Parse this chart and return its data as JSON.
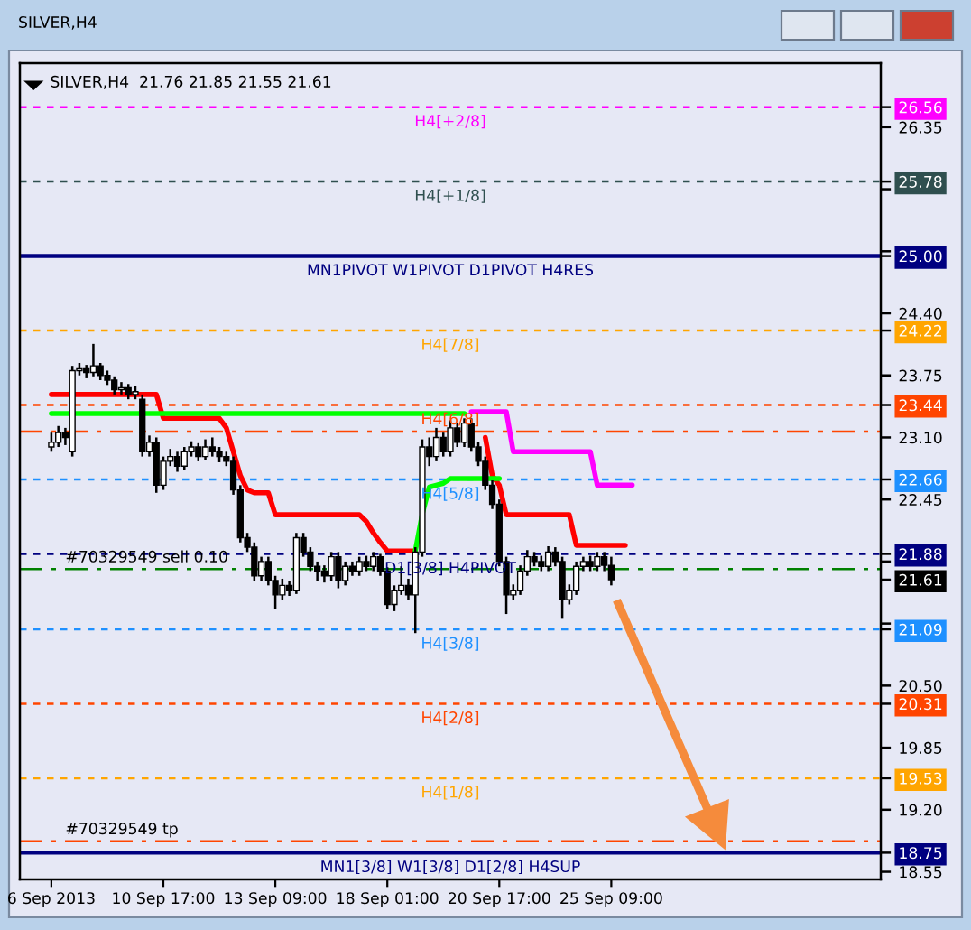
{
  "chart_data": {
    "type": "candlestick",
    "title": "SILVER,H4",
    "subtitle": "SILVER,H4  21.76 21.85 21.55 21.61",
    "categories": [
      "6 Sep 2013",
      null,
      null,
      null,
      null,
      null,
      null,
      null,
      null,
      null,
      null,
      null,
      null,
      null,
      null,
      null,
      "10 Sep 17:00",
      null,
      null,
      null,
      null,
      null,
      null,
      null,
      null,
      null,
      null,
      null,
      null,
      null,
      null,
      null,
      "13 Sep 09:00",
      null,
      null,
      null,
      null,
      null,
      null,
      null,
      null,
      null,
      null,
      null,
      null,
      null,
      null,
      null,
      "18 Sep 01:00",
      null,
      null,
      null,
      null,
      null,
      null,
      null,
      null,
      null,
      null,
      null,
      null,
      null,
      null,
      null,
      "20 Sep 17:00",
      null,
      null,
      null,
      null,
      null,
      null,
      null,
      null,
      null,
      null,
      null,
      null,
      null,
      null,
      null,
      "25 Sep 09:00",
      null,
      null,
      null,
      null,
      null,
      null,
      null,
      null,
      null,
      null,
      null,
      null,
      null,
      null,
      null,
      null,
      null,
      null,
      null,
      null,
      null,
      null,
      null,
      null,
      null,
      null,
      null,
      null,
      null,
      null,
      null,
      null,
      null,
      null,
      null,
      null,
      null,
      null
    ],
    "ohlc": [
      [
        23.0,
        23.15,
        22.95,
        23.05
      ],
      [
        23.05,
        23.22,
        23.0,
        23.15
      ],
      [
        23.15,
        23.2,
        23.02,
        23.1
      ],
      [
        22.95,
        23.85,
        22.9,
        23.8
      ],
      [
        23.8,
        23.88,
        23.75,
        23.82
      ],
      [
        23.82,
        23.86,
        23.72,
        23.78
      ],
      [
        23.78,
        24.08,
        23.74,
        23.85
      ],
      [
        23.85,
        23.88,
        23.7,
        23.75
      ],
      [
        23.75,
        23.8,
        23.65,
        23.7
      ],
      [
        23.7,
        23.74,
        23.55,
        23.6
      ],
      [
        23.6,
        23.68,
        23.55,
        23.62
      ],
      [
        23.62,
        23.66,
        23.5,
        23.55
      ],
      [
        23.55,
        23.64,
        23.5,
        23.58
      ],
      [
        23.5,
        23.55,
        22.9,
        22.95
      ],
      [
        22.95,
        23.12,
        22.9,
        23.05
      ],
      [
        23.05,
        23.1,
        22.52,
        22.6
      ],
      [
        22.6,
        22.9,
        22.55,
        22.85
      ],
      [
        22.85,
        22.98,
        22.8,
        22.9
      ],
      [
        22.9,
        22.95,
        22.74,
        22.8
      ],
      [
        22.8,
        23.0,
        22.76,
        22.95
      ],
      [
        22.95,
        23.06,
        22.9,
        23.0
      ],
      [
        23.0,
        23.04,
        22.85,
        22.9
      ],
      [
        22.9,
        23.08,
        22.86,
        23.0
      ],
      [
        23.0,
        23.1,
        22.9,
        22.95
      ],
      [
        22.95,
        23.0,
        22.84,
        22.9
      ],
      [
        22.9,
        22.95,
        22.8,
        22.85
      ],
      [
        22.85,
        22.9,
        22.5,
        22.55
      ],
      [
        22.55,
        22.6,
        22.0,
        22.05
      ],
      [
        22.05,
        22.1,
        21.9,
        21.95
      ],
      [
        21.95,
        22.0,
        21.6,
        21.65
      ],
      [
        21.65,
        21.85,
        21.6,
        21.8
      ],
      [
        21.8,
        21.85,
        21.55,
        21.6
      ],
      [
        21.6,
        21.65,
        21.3,
        21.45
      ],
      [
        21.45,
        21.62,
        21.4,
        21.55
      ],
      [
        21.55,
        21.6,
        21.44,
        21.5
      ],
      [
        21.5,
        22.1,
        21.46,
        22.05
      ],
      [
        22.05,
        22.1,
        21.85,
        21.9
      ],
      [
        21.9,
        21.95,
        21.7,
        21.75
      ],
      [
        21.75,
        21.8,
        21.6,
        21.7
      ],
      [
        21.7,
        21.76,
        21.58,
        21.65
      ],
      [
        21.65,
        21.9,
        21.6,
        21.85
      ],
      [
        21.85,
        21.9,
        21.52,
        21.6
      ],
      [
        21.6,
        21.8,
        21.55,
        21.75
      ],
      [
        21.75,
        21.8,
        21.65,
        21.7
      ],
      [
        21.7,
        21.85,
        21.65,
        21.8
      ],
      [
        21.8,
        21.86,
        21.7,
        21.75
      ],
      [
        21.75,
        21.9,
        21.7,
        21.85
      ],
      [
        21.85,
        21.88,
        21.65,
        21.7
      ],
      [
        21.7,
        21.74,
        21.3,
        21.35
      ],
      [
        21.35,
        21.55,
        21.28,
        21.5
      ],
      [
        21.5,
        21.75,
        21.45,
        21.55
      ],
      [
        21.55,
        21.62,
        21.4,
        21.45
      ],
      [
        21.45,
        21.95,
        21.05,
        21.9
      ],
      [
        21.9,
        23.08,
        21.85,
        23.0
      ],
      [
        23.0,
        23.1,
        22.8,
        22.9
      ],
      [
        22.9,
        23.2,
        22.85,
        23.1
      ],
      [
        23.1,
        23.15,
        22.9,
        22.95
      ],
      [
        22.95,
        23.28,
        22.9,
        23.2
      ],
      [
        23.2,
        23.25,
        23.0,
        23.05
      ],
      [
        23.05,
        23.3,
        23.0,
        23.25
      ],
      [
        23.25,
        23.3,
        22.95,
        23.0
      ],
      [
        23.0,
        23.05,
        22.8,
        22.85
      ],
      [
        22.85,
        22.9,
        22.55,
        22.6
      ],
      [
        22.6,
        22.65,
        22.35,
        22.4
      ],
      [
        22.4,
        22.45,
        21.75,
        21.8
      ],
      [
        21.8,
        21.85,
        21.25,
        21.45
      ],
      [
        21.45,
        21.56,
        21.4,
        21.5
      ],
      [
        21.5,
        21.76,
        21.45,
        21.7
      ],
      [
        21.7,
        21.92,
        21.65,
        21.85
      ],
      [
        21.85,
        21.9,
        21.75,
        21.8
      ],
      [
        21.8,
        21.86,
        21.7,
        21.75
      ],
      [
        21.75,
        21.96,
        21.7,
        21.9
      ],
      [
        21.9,
        21.95,
        21.75,
        21.8
      ],
      [
        21.8,
        21.85,
        21.2,
        21.4
      ],
      [
        21.4,
        21.56,
        21.35,
        21.5
      ],
      [
        21.5,
        21.8,
        21.45,
        21.75
      ],
      [
        21.75,
        21.85,
        21.7,
        21.8
      ],
      [
        21.8,
        21.86,
        21.7,
        21.75
      ],
      [
        21.75,
        21.9,
        21.7,
        21.85
      ],
      [
        21.85,
        21.9,
        21.7,
        21.76
      ],
      [
        21.76,
        21.85,
        21.55,
        21.61
      ],
      null,
      null,
      null,
      null,
      null,
      null,
      null,
      null,
      null,
      null,
      null,
      null,
      null,
      null,
      null,
      null,
      null,
      null,
      null,
      null,
      null,
      null,
      null,
      null,
      null,
      null,
      null,
      null,
      null,
      null,
      null,
      null,
      null,
      null,
      null,
      null,
      null,
      null
    ],
    "series": [
      {
        "type": "line",
        "color": "#ff0000",
        "values": [
          23.55,
          23.55,
          23.55,
          23.55,
          23.55,
          23.55,
          23.55,
          23.55,
          23.55,
          23.55,
          23.55,
          23.55,
          23.55,
          23.55,
          23.55,
          23.55,
          23.3,
          23.3,
          23.3,
          23.3,
          23.3,
          23.3,
          23.3,
          23.3,
          23.3,
          23.2,
          22.95,
          22.7,
          22.55,
          22.52,
          22.52,
          22.52,
          22.29,
          22.29,
          22.29,
          22.29,
          22.29,
          22.29,
          22.29,
          22.29,
          22.29,
          22.29,
          22.29,
          22.29,
          22.29,
          22.22,
          22.1,
          22.0,
          21.91,
          21.91,
          21.91,
          21.91,
          21.91,
          null,
          null,
          null,
          null,
          null,
          null,
          null,
          null,
          null,
          23.1,
          22.7,
          22.6,
          22.29,
          22.29,
          22.29,
          22.29,
          22.29,
          22.29,
          22.29,
          22.29,
          22.29,
          22.29,
          21.97,
          21.97,
          21.97,
          21.97,
          21.97,
          21.97,
          21.97,
          21.97,
          null,
          null,
          null,
          null,
          null,
          null,
          null,
          null,
          null,
          null,
          null,
          null,
          null,
          null,
          null,
          null,
          null,
          null,
          null,
          null,
          null,
          null,
          null,
          null,
          null,
          null,
          null,
          null,
          null,
          null,
          null,
          null,
          null,
          null,
          null,
          null
        ]
      },
      {
        "type": "line",
        "color": "#00ff00",
        "values": [
          23.35,
          23.35,
          23.35,
          23.35,
          23.35,
          23.35,
          23.35,
          23.35,
          23.35,
          23.35,
          23.35,
          23.35,
          23.35,
          23.35,
          23.35,
          23.35,
          23.35,
          23.35,
          23.35,
          23.35,
          23.35,
          23.35,
          23.35,
          23.35,
          23.35,
          23.35,
          23.35,
          23.35,
          23.35,
          23.35,
          23.35,
          23.35,
          23.35,
          23.35,
          23.35,
          23.35,
          23.35,
          23.35,
          23.35,
          23.35,
          23.35,
          23.35,
          23.35,
          23.35,
          23.35,
          23.35,
          23.35,
          23.35,
          23.35,
          23.35,
          23.35,
          23.35,
          23.35,
          23.35,
          23.35,
          23.35,
          23.35,
          23.35,
          23.35,
          23.35,
          null,
          null,
          null,
          null,
          null,
          null,
          null,
          null,
          null,
          null,
          null,
          null,
          null,
          null,
          null,
          null,
          null,
          null,
          null,
          null,
          null,
          null,
          null,
          null,
          null,
          null,
          null,
          null,
          null,
          null,
          null,
          null,
          null,
          null,
          null,
          null,
          null,
          null,
          null,
          null,
          null,
          null,
          null,
          null,
          null,
          null,
          null,
          null,
          null,
          null,
          null,
          null,
          null,
          null,
          null,
          null,
          null,
          null,
          null
        ]
      },
      {
        "type": "line",
        "color": "#ff00ff",
        "values": [
          null,
          null,
          null,
          null,
          null,
          null,
          null,
          null,
          null,
          null,
          null,
          null,
          null,
          null,
          null,
          null,
          null,
          null,
          null,
          null,
          null,
          null,
          null,
          null,
          null,
          null,
          null,
          null,
          null,
          null,
          null,
          null,
          null,
          null,
          null,
          null,
          null,
          null,
          null,
          null,
          null,
          null,
          null,
          null,
          null,
          null,
          null,
          null,
          null,
          null,
          null,
          null,
          null,
          null,
          null,
          null,
          null,
          null,
          null,
          null,
          23.37,
          23.37,
          23.37,
          23.37,
          23.37,
          23.37,
          22.95,
          22.95,
          22.95,
          22.95,
          22.95,
          22.95,
          22.95,
          22.95,
          22.95,
          22.95,
          22.95,
          22.95,
          22.6,
          22.6,
          22.6,
          22.6,
          22.6,
          22.6,
          null,
          null,
          null,
          null,
          null,
          null,
          null,
          null,
          null,
          null,
          null,
          null,
          null,
          null,
          null,
          null,
          null,
          null,
          null,
          null,
          null,
          null,
          null,
          null,
          null,
          null,
          null,
          null,
          null,
          null,
          null,
          null,
          null,
          null,
          null
        ]
      },
      {
        "type": "line",
        "color": "#00ff00",
        "values": [
          null,
          null,
          null,
          null,
          null,
          null,
          null,
          null,
          null,
          null,
          null,
          null,
          null,
          null,
          null,
          null,
          null,
          null,
          null,
          null,
          null,
          null,
          null,
          null,
          null,
          null,
          null,
          null,
          null,
          null,
          null,
          null,
          null,
          null,
          null,
          null,
          null,
          null,
          null,
          null,
          null,
          null,
          null,
          null,
          null,
          null,
          null,
          null,
          null,
          null,
          null,
          null,
          21.91,
          22.3,
          22.58,
          22.6,
          22.62,
          22.67,
          22.67,
          22.67,
          22.67,
          22.67,
          22.67,
          22.67,
          22.67,
          null,
          null,
          null,
          null,
          null,
          null,
          null,
          null,
          null,
          null,
          null,
          null,
          null,
          null,
          null,
          null,
          null,
          null,
          null,
          null,
          null,
          null,
          null,
          null,
          null,
          null,
          null,
          null,
          null,
          null,
          null,
          null,
          null,
          null,
          null,
          null,
          null,
          null,
          null,
          null,
          null,
          null,
          null,
          null,
          null,
          null,
          null,
          null,
          null,
          null,
          null,
          null,
          null,
          null
        ]
      }
    ],
    "ylim": [
      18.47,
      27.02
    ],
    "yticks": [
      {
        "value": 26.56,
        "label": "26.56"
      },
      26.35,
      {
        "value": 25.78,
        "label": "25.78"
      },
      {
        "value": 25.7,
        "label": null
      },
      {
        "value": 25.05,
        "label": null
      },
      {
        "value": 25.0,
        "label": "25.00"
      },
      {
        "value": 24.4,
        "label": "24.40"
      },
      {
        "value": 24.22,
        "label": "24.22"
      },
      23.75,
      {
        "value": 23.44,
        "label": "23.44"
      },
      {
        "value": 23.1,
        "label": "23.10"
      },
      {
        "value": 22.66,
        "label": "22.66"
      },
      22.45,
      {
        "value": 21.88,
        "label": "21.88"
      },
      {
        "value": 21.8,
        "label": null
      },
      {
        "value": 21.61,
        "label": "21.61"
      },
      {
        "value": 21.15,
        "label": null
      },
      {
        "value": 21.09,
        "label": "21.09"
      },
      {
        "value": 20.5,
        "label": "20.50"
      },
      {
        "value": 20.31,
        "label": "20.31"
      },
      19.85,
      {
        "value": 19.53,
        "label": "19.53"
      },
      {
        "value": 19.2,
        "label": "19.20"
      },
      {
        "value": 18.75,
        "label": "18.75"
      },
      18.55
    ],
    "ref_lines": [
      {
        "axis": "y",
        "value": 26.56,
        "label": "H4[+2/8]",
        "color": "#ff00ff",
        "line_style": "dashed"
      },
      {
        "axis": "y",
        "value": 25.78,
        "label": "H4[+1/8]",
        "color": "#2f4f4f",
        "line_style": "dashed"
      },
      {
        "axis": "y",
        "value": 25.0,
        "label": "MN1PIVOT W1PIVOT D1PIVOT H4RES",
        "color": "#000080",
        "line_style": "solid"
      },
      {
        "axis": "y",
        "value": 24.22,
        "label": "H4[7/8]",
        "color": "#ffa500",
        "line_style": "dashed"
      },
      {
        "axis": "y",
        "value": 23.44,
        "label": "H4[6/8]",
        "color": "#ff4500",
        "line_style": "dashed"
      },
      {
        "axis": "y",
        "value": 23.16,
        "color": "#ff4500",
        "line_style": "dotted"
      },
      {
        "axis": "y",
        "value": 22.66,
        "label": "H4[5/8]",
        "color": "#1e90ff",
        "line_style": "dashed"
      },
      {
        "axis": "y",
        "value": 21.88,
        "label": "D1[3/8] H4PIVOT",
        "color": "#000080",
        "line_style": "dashed"
      },
      {
        "axis": "y",
        "value": 21.72,
        "label": "#70329549 sell 0.10",
        "color": "#008000",
        "line_style": "dotted"
      },
      {
        "axis": "y",
        "value": 21.09,
        "label": "H4[3/8]",
        "color": "#1e90ff",
        "line_style": "dashed"
      },
      {
        "axis": "y",
        "value": 20.31,
        "label": "H4[2/8]",
        "color": "#ff4500",
        "line_style": "dashed"
      },
      {
        "axis": "y",
        "value": 19.53,
        "label": "H4[1/8]",
        "color": "#ffa500",
        "line_style": "dashed"
      },
      {
        "axis": "y",
        "value": 18.87,
        "label": "#70329549 tp",
        "color": "#ff4500",
        "line_style": "dotted"
      },
      {
        "axis": "y",
        "value": 18.75,
        "label": "MN1[3/8] W1[3/8] D1[2/8] H4SUP",
        "color": "#000080",
        "line_style": "solid"
      }
    ],
    "grid": false
  }
}
